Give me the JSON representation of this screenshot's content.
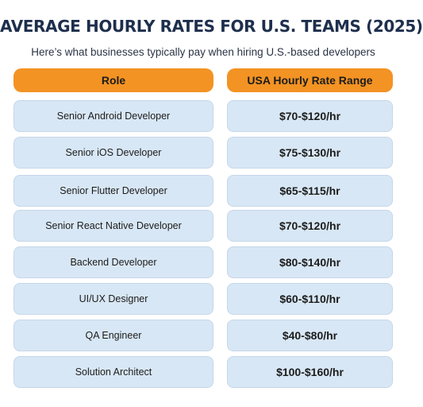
{
  "title": "AVERAGE HOURLY RATES FOR U.S. TEAMS (2025)",
  "subtitle": "Here’s what businesses typically pay when hiring U.S.-based developers",
  "table": {
    "headers": {
      "role": "Role",
      "rate": "USA Hourly Rate Range"
    },
    "rows": [
      {
        "role": "Senior Android Developer",
        "rate": "$70-$120/hr"
      },
      {
        "role": "Senior iOS Developer",
        "rate": "$75-$130/hr"
      },
      {
        "role": "Senior Flutter Developer",
        "rate": "$65-$115/hr"
      },
      {
        "role": "Senior React Native Developer",
        "rate": "$70-$120/hr"
      },
      {
        "role": "Backend Developer",
        "rate": "$80-$140/hr"
      },
      {
        "role": "UI/UX Designer",
        "rate": "$60-$110/hr"
      },
      {
        "role": "QA Engineer",
        "rate": "$40-$80/hr"
      },
      {
        "role": "Solution Architect",
        "rate": "$100-$160/hr"
      }
    ]
  },
  "colors": {
    "title": "#1e2f4d",
    "header_pill": "#f39323",
    "cell_background": "#d8e7f5"
  }
}
